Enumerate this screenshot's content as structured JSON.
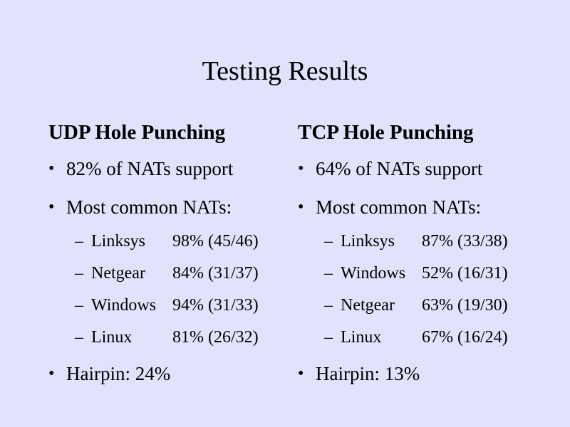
{
  "slide": {
    "title": "Testing Results",
    "udp": {
      "heading": "UDP Hole Punching",
      "support": "82% of NATs support",
      "common": "Most common NATs:",
      "nats": [
        {
          "name": "Linksys",
          "result": "98% (45/46)"
        },
        {
          "name": "Netgear",
          "result": "84% (31/37)"
        },
        {
          "name": "Windows",
          "result": "94% (31/33)"
        },
        {
          "name": "Linux",
          "result": "81% (26/32)"
        }
      ],
      "hairpin": "Hairpin: 24%"
    },
    "tcp": {
      "heading": "TCP Hole Punching",
      "support": "64% of NATs support",
      "common": "Most common NATs:",
      "nats": [
        {
          "name": "Linksys",
          "result": "87% (33/38)"
        },
        {
          "name": "Windows",
          "result": "52% (16/31)"
        },
        {
          "name": "Netgear",
          "result": "63% (19/30)"
        },
        {
          "name": "Linux",
          "result": "67% (16/24)"
        }
      ],
      "hairpin": "Hairpin: 13%"
    },
    "bullet_glyph": "•",
    "dash_glyph": "–"
  }
}
